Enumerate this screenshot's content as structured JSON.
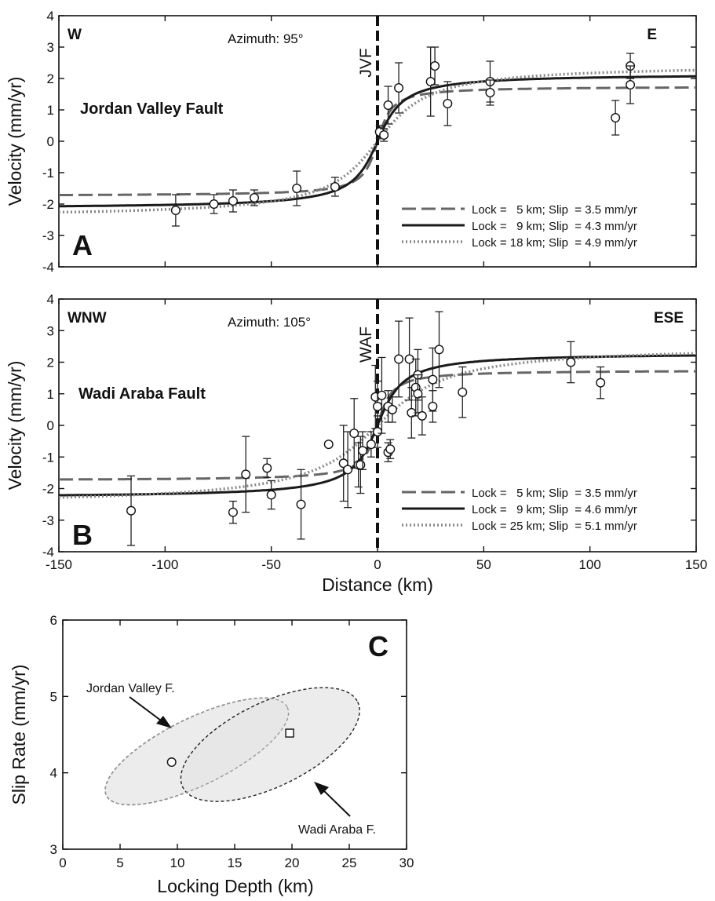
{
  "chart_data": [
    {
      "panel": "A",
      "type": "line",
      "corner_left": "W",
      "corner_right": "E",
      "azimuth": "Azimuth:  95°",
      "fault_label": "JVF",
      "fault_name": "Jordan Valley Fault",
      "ylabel": "Velocity (mm/yr)",
      "xlabel": "",
      "xlim": [
        -150,
        150
      ],
      "ylim": [
        -4,
        4
      ],
      "xticks": [],
      "yticks": [
        -4,
        -3,
        -2,
        -1,
        0,
        1,
        2,
        3,
        4
      ],
      "fault_x": 0,
      "legend_position": "bottom-right",
      "series": [
        {
          "name": "Lock =   5 km; Slip  = 3.5 mm/yr",
          "style": "dashed",
          "color": "#666666",
          "lock_km": 5,
          "slip_mm_yr": 3.5
        },
        {
          "name": "Lock =   9 km; Slip  = 4.3 mm/yr",
          "style": "solid",
          "color": "#1a1a1a",
          "lock_km": 9,
          "slip_mm_yr": 4.3
        },
        {
          "name": "Lock = 18 km; Slip  = 4.9 mm/yr",
          "style": "dotted",
          "color": "#888888",
          "lock_km": 18,
          "slip_mm_yr": 4.9
        }
      ],
      "observations": [
        {
          "x": -95,
          "y": -2.2,
          "err": 0.5
        },
        {
          "x": -77,
          "y": -2.0,
          "err": 0.3
        },
        {
          "x": -68,
          "y": -1.9,
          "err": 0.35
        },
        {
          "x": -58,
          "y": -1.8,
          "err": 0.25
        },
        {
          "x": -38,
          "y": -1.5,
          "err": 0.55
        },
        {
          "x": -20,
          "y": -1.45,
          "err": 0.3
        },
        {
          "x": 1,
          "y": 0.3,
          "err": 0.2
        },
        {
          "x": 3,
          "y": 0.2,
          "err": 0.2
        },
        {
          "x": 5,
          "y": 1.15,
          "err": 0.6
        },
        {
          "x": 10,
          "y": 1.7,
          "err": 0.8
        },
        {
          "x": 25,
          "y": 1.9,
          "err": 1.1
        },
        {
          "x": 27,
          "y": 2.4,
          "err": 0.6
        },
        {
          "x": 33,
          "y": 1.2,
          "err": 0.7
        },
        {
          "x": 53,
          "y": 1.9,
          "err": 0.65
        },
        {
          "x": 53,
          "y": 1.55,
          "err": 0.4
        },
        {
          "x": 112,
          "y": 0.75,
          "err": 0.55
        },
        {
          "x": 119,
          "y": 2.4,
          "err": 0.4
        },
        {
          "x": 119,
          "y": 1.8,
          "err": 0.6
        }
      ]
    },
    {
      "panel": "B",
      "type": "line",
      "corner_left": "WNW",
      "corner_right": "ESE",
      "azimuth": "Azimuth:  105°",
      "fault_label": "WAF",
      "fault_name": "Wadi Araba Fault",
      "ylabel": "Velocity (mm/yr)",
      "xlabel": "Distance (km)",
      "xlim": [
        -150,
        150
      ],
      "ylim": [
        -4,
        4
      ],
      "xticks": [
        -150,
        -100,
        -50,
        0,
        50,
        100,
        150
      ],
      "yticks": [
        -4,
        -3,
        -2,
        -1,
        0,
        1,
        2,
        3,
        4
      ],
      "fault_x": 0,
      "legend_position": "bottom-right",
      "series": [
        {
          "name": "Lock =   5 km; Slip  = 3.5 mm/yr",
          "style": "dashed",
          "color": "#666666",
          "lock_km": 5,
          "slip_mm_yr": 3.5
        },
        {
          "name": "Lock =   9 km; Slip  = 4.6 mm/yr",
          "style": "solid",
          "color": "#1a1a1a",
          "lock_km": 9,
          "slip_mm_yr": 4.6
        },
        {
          "name": "Lock = 25 km; Slip  = 5.1 mm/yr",
          "style": "dotted",
          "color": "#888888",
          "lock_km": 25,
          "slip_mm_yr": 5.1
        }
      ],
      "observations": [
        {
          "x": -116,
          "y": -2.7,
          "err": 1.1
        },
        {
          "x": -68,
          "y": -2.75,
          "err": 0.35
        },
        {
          "x": -62,
          "y": -1.55,
          "err": 1.2
        },
        {
          "x": -52,
          "y": -1.35,
          "err": 0.3
        },
        {
          "x": -50,
          "y": -2.2,
          "err": 0.45
        },
        {
          "x": -36,
          "y": -2.5,
          "err": 1.1
        },
        {
          "x": -23,
          "y": -0.6,
          "err": 0.0
        },
        {
          "x": -16,
          "y": -1.2,
          "err": 1.2
        },
        {
          "x": -14,
          "y": -1.4,
          "err": 1.2
        },
        {
          "x": -11,
          "y": -0.25,
          "err": 1.1
        },
        {
          "x": -9,
          "y": -1.25,
          "err": 0.7
        },
        {
          "x": -8,
          "y": -1.25,
          "err": 0.9
        },
        {
          "x": -7,
          "y": -0.8,
          "err": 0.6
        },
        {
          "x": -3,
          "y": -0.6,
          "err": 0.4
        },
        {
          "x": -1,
          "y": 0.9,
          "err": 1.0
        },
        {
          "x": 0,
          "y": 0.6,
          "err": 0.8
        },
        {
          "x": 0,
          "y": -0.2,
          "err": 0.5
        },
        {
          "x": 2,
          "y": 0.95,
          "err": 1.2
        },
        {
          "x": 5,
          "y": 0.6,
          "err": 0.5
        },
        {
          "x": 5,
          "y": -0.85,
          "err": 0.3
        },
        {
          "x": 6,
          "y": -0.75,
          "err": 0.3
        },
        {
          "x": 7,
          "y": 0.5,
          "err": 0.4
        },
        {
          "x": 10,
          "y": 2.1,
          "err": 1.2
        },
        {
          "x": 15,
          "y": 2.1,
          "err": 1.3
        },
        {
          "x": 16,
          "y": 0.4,
          "err": 0.8
        },
        {
          "x": 18,
          "y": 1.2,
          "err": 0.9
        },
        {
          "x": 19,
          "y": 1.6,
          "err": 0.8
        },
        {
          "x": 19,
          "y": 1.0,
          "err": 0.6
        },
        {
          "x": 21,
          "y": 0.3,
          "err": 0.6
        },
        {
          "x": 26,
          "y": 1.45,
          "err": 1.0
        },
        {
          "x": 26,
          "y": 0.6,
          "err": 0.5
        },
        {
          "x": 29,
          "y": 2.4,
          "err": 1.2
        },
        {
          "x": 40,
          "y": 1.05,
          "err": 0.8
        },
        {
          "x": 91,
          "y": 2.0,
          "err": 0.65
        },
        {
          "x": 105,
          "y": 1.35,
          "err": 0.5
        }
      ]
    },
    {
      "panel": "C",
      "type": "scatter",
      "xlabel": "Locking Depth (km)",
      "ylabel": "Slip Rate (mm/yr)",
      "xlim": [
        0,
        30
      ],
      "ylim": [
        3,
        6
      ],
      "xticks": [
        0,
        5,
        10,
        15,
        20,
        25,
        30
      ],
      "yticks": [
        3,
        4,
        5,
        6
      ],
      "points": [
        {
          "label": "Jordan Valley F.",
          "marker": "circle",
          "x": 9.5,
          "y": 4.14
        },
        {
          "label": "Wadi Araba F.",
          "marker": "square",
          "x": 19.8,
          "y": 4.52
        }
      ],
      "ellipses": [
        {
          "label": "Jordan Valley F.",
          "center": [
            11.7,
            4.28
          ],
          "x_extent": [
            3.2,
            19.2
          ],
          "y_extent": [
            3.58,
            4.98
          ]
        },
        {
          "label": "Wadi Araba F.",
          "center": [
            18.1,
            4.37
          ],
          "x_extent": [
            10.4,
            26.0
          ],
          "y_extent": [
            3.63,
            5.12
          ]
        }
      ]
    }
  ],
  "panel_labels": [
    "A",
    "B",
    "C"
  ]
}
